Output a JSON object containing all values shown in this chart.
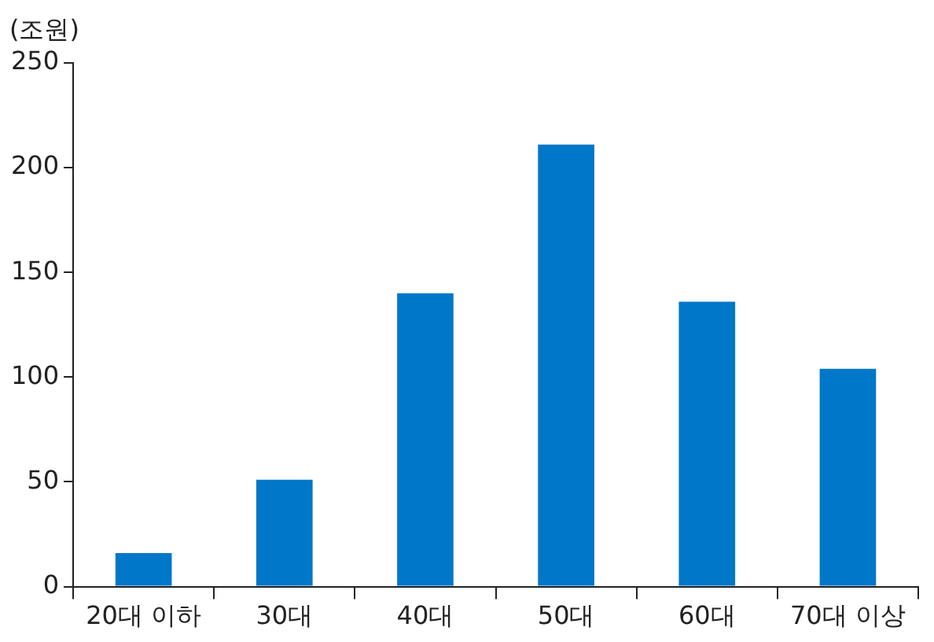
{
  "chart_data": {
    "type": "bar",
    "ylabel": "(조원)",
    "categories": [
      "20대 이하",
      "30대",
      "40대",
      "50대",
      "60대",
      "70대 이상"
    ],
    "values": [
      16,
      51,
      140,
      211,
      136,
      104
    ],
    "color": "#0077c8",
    "ylim": [
      0,
      250
    ],
    "yticks": [
      0,
      50,
      100,
      150,
      200,
      250
    ],
    "grid": false,
    "legend": false
  }
}
